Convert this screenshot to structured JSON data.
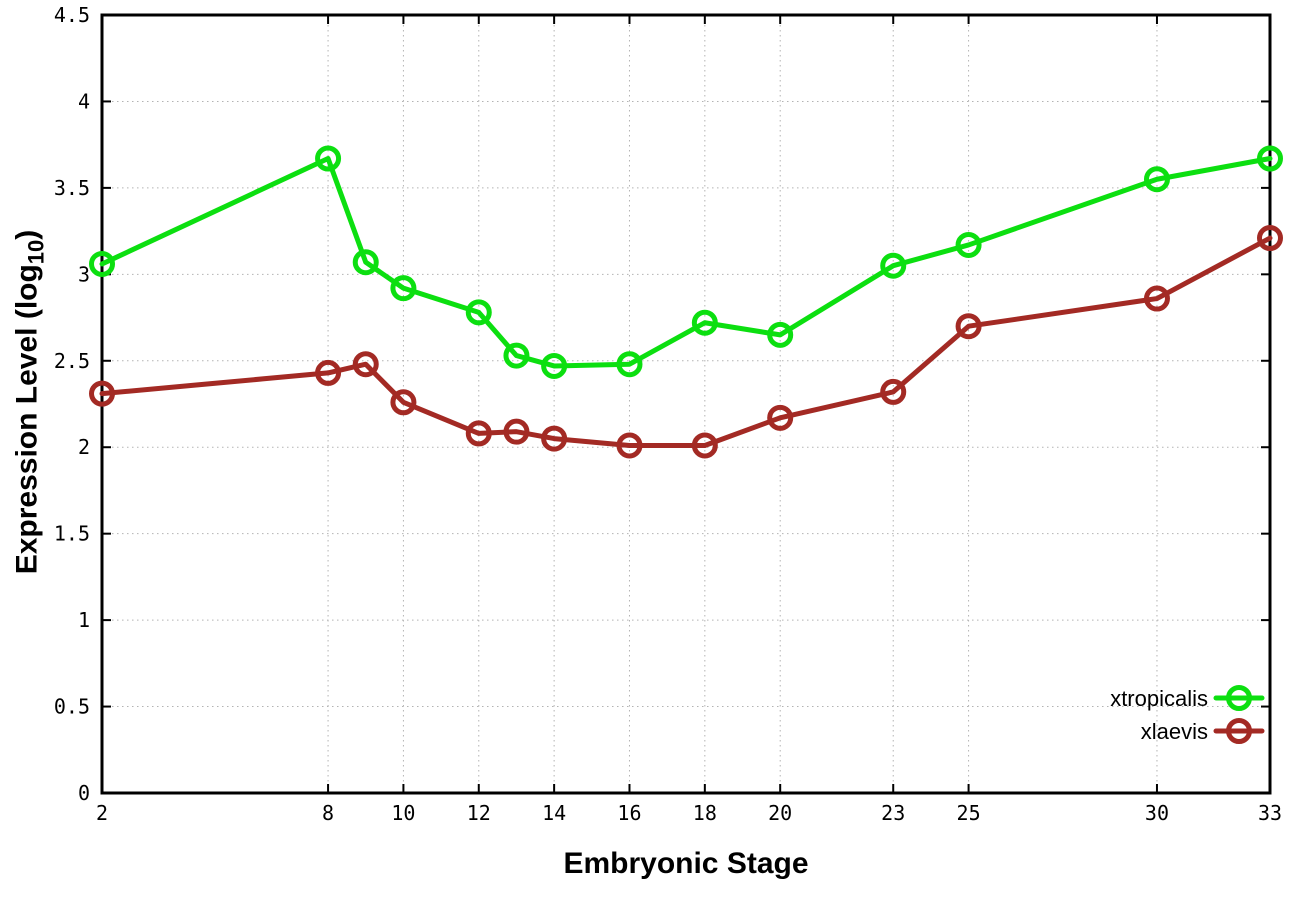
{
  "chart_data": {
    "type": "line",
    "title": "",
    "xlabel": "Embryonic Stage",
    "ylabel": "Expression Level (log10)",
    "ylabel_parts": {
      "main": "Expression Level (log",
      "sub": "10",
      "close": ")"
    },
    "xlim": [
      2,
      33
    ],
    "ylim": [
      0,
      4.5
    ],
    "grid": true,
    "legend_position": "bottom-right",
    "x_ticks": [
      2,
      8,
      10,
      12,
      14,
      16,
      18,
      20,
      23,
      25,
      30,
      33
    ],
    "y_ticks": [
      0,
      0.5,
      1,
      1.5,
      2,
      2.5,
      3,
      3.5,
      4,
      4.5
    ],
    "y_tick_labels": [
      "0",
      "0.5",
      "1",
      "1.5",
      "2",
      "2.5",
      "3",
      "3.5",
      "4",
      "4.5"
    ],
    "x": [
      2,
      8,
      9,
      10,
      12,
      13,
      14,
      16,
      18,
      20,
      23,
      25,
      30,
      33
    ],
    "series": [
      {
        "name": "xtropicalis",
        "color": "#0cdf10",
        "values": [
          3.06,
          3.67,
          3.07,
          2.92,
          2.78,
          2.53,
          2.47,
          2.48,
          2.72,
          2.65,
          3.05,
          3.17,
          3.55,
          3.67
        ]
      },
      {
        "name": "xlaevis",
        "color": "#a32a24",
        "values": [
          2.31,
          2.43,
          2.48,
          2.26,
          2.08,
          2.09,
          2.05,
          2.01,
          2.01,
          2.17,
          2.32,
          2.7,
          2.86,
          3.21
        ]
      }
    ]
  }
}
